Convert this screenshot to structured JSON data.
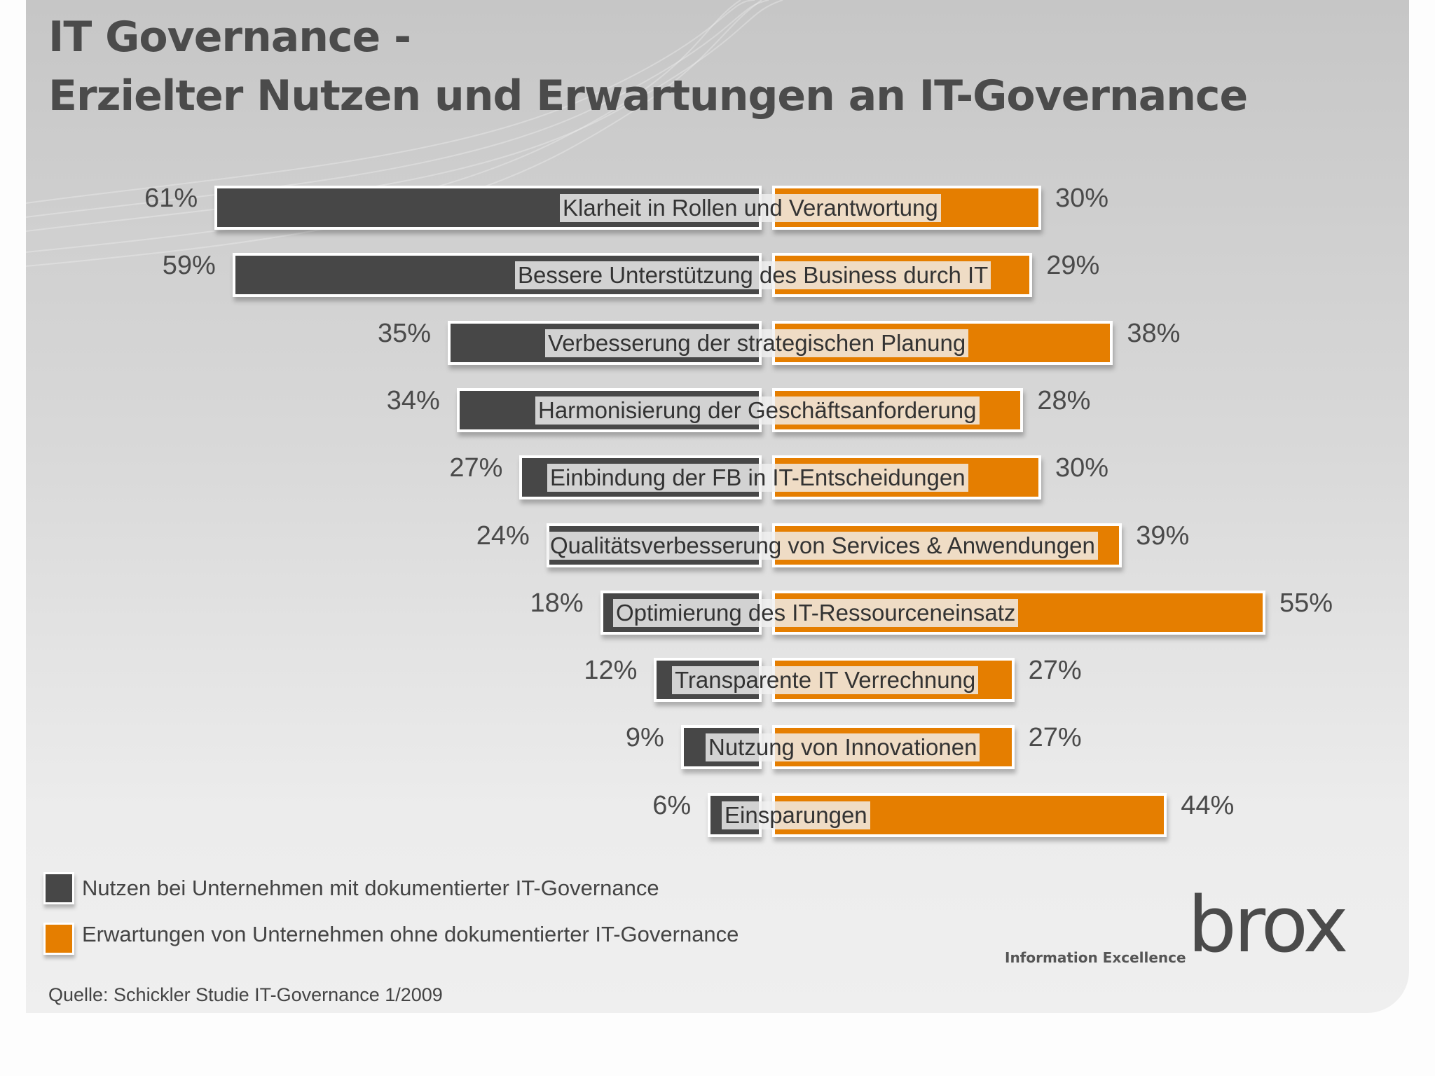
{
  "title_line1": "IT Governance -",
  "title_line2": "Erzielter Nutzen und Erwartungen an IT-Governance",
  "chart_data": {
    "type": "bar",
    "orientation": "horizontal-diverging",
    "unit": "%",
    "categories": [
      "Klarheit in Rollen und Verantwortung",
      "Bessere Unterstützung des Business durch IT",
      "Verbesserung der strategischen Planung",
      "Harmonisierung der Geschäftsanforderung",
      "Einbindung der FB in IT-Entscheidungen",
      "Qualitätsverbesserung von Services & Anwendungen",
      "Optimierung des IT-Ressourceneinsatz",
      "Transparente  IT Verrechnung",
      "Nutzung von Innovationen",
      "Einsparungen"
    ],
    "series": [
      {
        "name": "Nutzen bei Unternehmen mit dokumentierter IT-Governance",
        "color": "#474747",
        "values": [
          61,
          59,
          35,
          34,
          27,
          24,
          18,
          12,
          9,
          6
        ],
        "labels": [
          "61%",
          "59%",
          "35%",
          "34%",
          "27%",
          "24%",
          "18%",
          "12%",
          "9%",
          "6%"
        ]
      },
      {
        "name": "Erwartungen von Unternehmen ohne dokumentierter IT-Governance",
        "color": "#e57e00",
        "values": [
          30,
          29,
          38,
          28,
          30,
          39,
          55,
          27,
          27,
          44
        ],
        "labels": [
          "30%",
          "29%",
          "38%",
          "28%",
          "30%",
          "39%",
          "55%",
          "27%",
          "27%",
          "44%"
        ]
      }
    ],
    "legend_position": "bottom-left",
    "grid": false
  },
  "source": "Quelle: Schickler Studie IT-Governance 1/2009",
  "logo": {
    "word": "brox",
    "tagline": "Information Excellence"
  }
}
